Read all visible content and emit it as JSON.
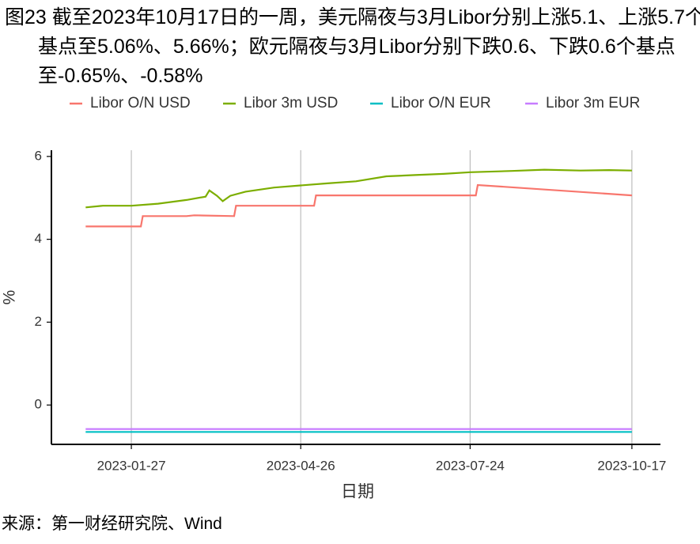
{
  "chart_data": {
    "type": "line",
    "title": "图23  截至2023年10月17日的一周，美元隔夜与3月Libor分别上涨5.1、上涨5.7个基点至5.06%、5.66%；欧元隔夜与3月Libor分别下跌0.6、下跌0.6个基点至-0.65%、-0.58%",
    "x_label": "日期",
    "y_label": "%",
    "source": "来源：第一财经研究院、Wind",
    "xlim": [
      "2022-12-16",
      "2023-11-01"
    ],
    "xticks": [
      "2023-01-27",
      "2023-04-26",
      "2023-07-24",
      "2023-10-17"
    ],
    "ylim": [
      -0.95,
      6.15
    ],
    "yticks": [
      0,
      2,
      4,
      6
    ],
    "grid": "x",
    "series": [
      {
        "name": "Libor O/N USD",
        "color": "#F8766D",
        "x": [
          "2023-01-03",
          "2023-02-01",
          "2023-02-02",
          "2023-02-25",
          "2023-03-01",
          "2023-03-22",
          "2023-03-23",
          "2023-05-03",
          "2023-05-04",
          "2023-06-15",
          "2023-07-27",
          "2023-07-28",
          "2023-10-17"
        ],
        "values": [
          4.31,
          4.31,
          4.56,
          4.56,
          4.58,
          4.56,
          4.81,
          4.81,
          5.06,
          5.06,
          5.06,
          5.31,
          5.06
        ]
      },
      {
        "name": "Libor 3m USD",
        "color": "#7CAE00",
        "x": [
          "2023-01-03",
          "2023-01-12",
          "2023-01-27",
          "2023-02-10",
          "2023-02-25",
          "2023-03-07",
          "2023-03-09",
          "2023-03-13",
          "2023-03-16",
          "2023-03-20",
          "2023-03-28",
          "2023-04-12",
          "2023-04-26",
          "2023-05-10",
          "2023-05-25",
          "2023-06-10",
          "2023-06-25",
          "2023-07-10",
          "2023-07-24",
          "2023-08-15",
          "2023-09-01",
          "2023-09-20",
          "2023-10-05",
          "2023-10-17"
        ],
        "values": [
          4.77,
          4.81,
          4.81,
          4.86,
          4.95,
          5.03,
          5.18,
          5.05,
          4.92,
          5.05,
          5.15,
          5.25,
          5.3,
          5.35,
          5.4,
          5.52,
          5.55,
          5.58,
          5.62,
          5.65,
          5.68,
          5.66,
          5.67,
          5.66
        ]
      },
      {
        "name": "Libor O/N EUR",
        "color": "#00BFC4",
        "x": [
          "2023-01-03",
          "2023-10-17"
        ],
        "values": [
          -0.65,
          -0.65
        ]
      },
      {
        "name": "Libor 3m EUR",
        "color": "#C77CFF",
        "x": [
          "2023-01-03",
          "2023-10-17"
        ],
        "values": [
          -0.58,
          -0.58
        ]
      }
    ]
  }
}
